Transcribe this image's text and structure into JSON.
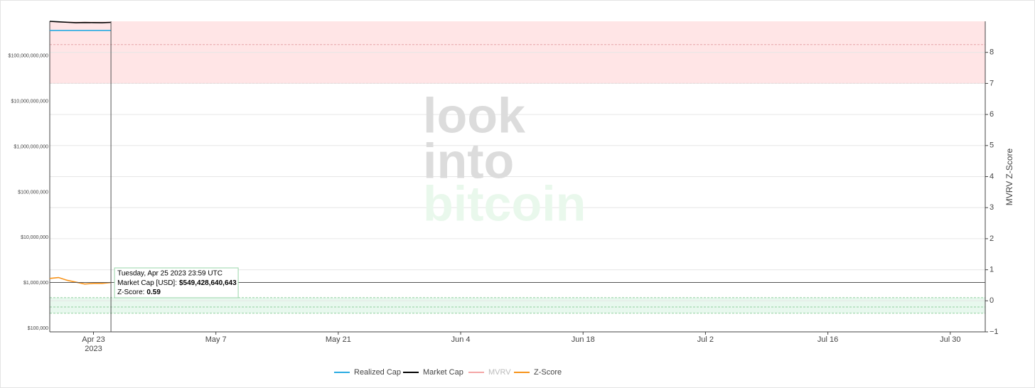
{
  "chart_data": {
    "type": "line",
    "watermark": [
      "look",
      "into",
      "bitcoin"
    ],
    "x": [
      "2023-04-18",
      "2023-04-19",
      "2023-04-20",
      "2023-04-21",
      "2023-04-22",
      "2023-04-23",
      "2023-04-24",
      "2023-04-25"
    ],
    "xlim": [
      "2023-04-18",
      "2023-08-03"
    ],
    "xticks": [
      {
        "value": "2023-04-23",
        "label": "Apr 23"
      },
      {
        "value": "2023-05-07",
        "label": "May 7"
      },
      {
        "value": "2023-05-21",
        "label": "May 21"
      },
      {
        "value": "2023-06-04",
        "label": "Jun 4"
      },
      {
        "value": "2023-06-18",
        "label": "Jun 18"
      },
      {
        "value": "2023-07-02",
        "label": "Jul 2"
      },
      {
        "value": "2023-07-16",
        "label": "Jul 16"
      },
      {
        "value": "2023-07-30",
        "label": "Jul 30"
      }
    ],
    "x_year": "2023",
    "log_y": true,
    "ylim": [
      84000,
      580000000000
    ],
    "yticks": [
      {
        "value": 100000,
        "label": "$100,000"
      },
      {
        "value": 1000000,
        "label": "$1,000,000"
      },
      {
        "value": 10000000,
        "label": "$10,000,000"
      },
      {
        "value": 100000000,
        "label": "$100,000,000"
      },
      {
        "value": 1000000000,
        "label": "$1,000,000,000"
      },
      {
        "value": 10000000000,
        "label": "$10,000,000,000"
      },
      {
        "value": 100000000000,
        "label": "$100,000,000,000"
      }
    ],
    "y2label": "MVRV Z-Score",
    "y2lim": [
      -1,
      9
    ],
    "y2ticks": [
      {
        "value": -1,
        "label": "−1"
      },
      0,
      1,
      2,
      3,
      4,
      5,
      6,
      7,
      8
    ],
    "grid": true,
    "zones": [
      {
        "range": [
          7,
          9
        ],
        "color": "#ffe5e6",
        "lines": [
          7,
          8.25
        ],
        "line_color": "#e7a3a8"
      },
      {
        "range": [
          -0.4,
          0.1
        ],
        "color": "#e8f8ee",
        "lines": [
          -0.4,
          -0.2,
          0.1
        ],
        "line_color": "#8fcf9f"
      }
    ],
    "series": [
      {
        "name": "Realized Cap",
        "color": "#29abe2",
        "values": [
          366000000000,
          366000000000,
          366000000000,
          366000000000,
          366000000000,
          366000000000,
          366000000000,
          366000000000
        ]
      },
      {
        "name": "Market Cap",
        "color": "#000000",
        "values": [
          580000000000,
          565000000000,
          552000000000,
          540000000000,
          545000000000,
          544000000000,
          541000000000,
          549428640643
        ]
      },
      {
        "name": "MVRV",
        "color": "#f4a6a6",
        "visible": false,
        "values": [
          null,
          null,
          null,
          null,
          null,
          null,
          null,
          null
        ]
      },
      {
        "name": "Z-Score",
        "color": "#f7931a",
        "axis": "y2",
        "values": [
          0.72,
          0.75,
          0.66,
          0.6,
          0.54,
          0.56,
          0.56,
          0.59
        ]
      }
    ],
    "tooltip": {
      "date": "Tuesday, Apr 25 2023 23:59 UTC",
      "cap_label": "Market Cap [USD]:",
      "cap_value": "$549,428,640,643",
      "z_label": "Z-Score:",
      "z_value": 0.59
    }
  }
}
